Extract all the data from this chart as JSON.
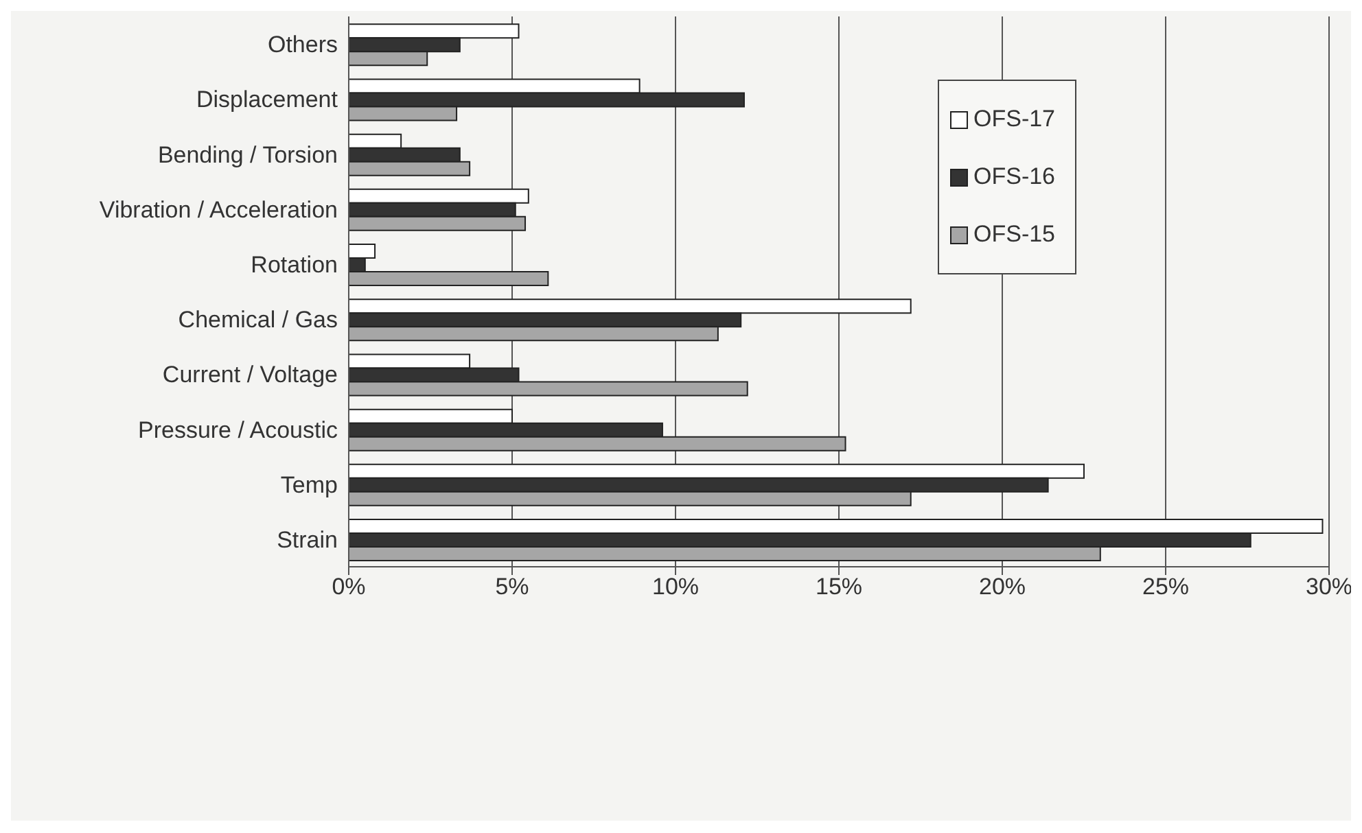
{
  "chart_data": {
    "type": "bar",
    "orientation": "horizontal",
    "categories": [
      "Others",
      "Displacement",
      "Bending / Torsion",
      "Vibration / Acceleration",
      "Rotation",
      "Chemical / Gas",
      "Current / Voltage",
      "Pressure / Acoustic",
      "Temp",
      "Strain"
    ],
    "series": [
      {
        "name": "OFS-17",
        "color": "#ffffff",
        "values": [
          5.2,
          8.9,
          1.6,
          5.5,
          0.8,
          17.2,
          3.7,
          5.0,
          22.5,
          29.8
        ]
      },
      {
        "name": "OFS-16",
        "color": "#333333",
        "values": [
          3.4,
          12.1,
          3.4,
          5.1,
          0.5,
          12.0,
          5.2,
          9.6,
          21.4,
          27.6
        ]
      },
      {
        "name": "OFS-15",
        "color": "#a6a6a6",
        "values": [
          2.4,
          3.3,
          3.7,
          5.4,
          6.1,
          11.3,
          12.2,
          15.2,
          17.2,
          23.0
        ]
      }
    ],
    "xlim": [
      0,
      30
    ],
    "xticks": [
      {
        "value": 0,
        "label": "0%"
      },
      {
        "value": 5,
        "label": "5%"
      },
      {
        "value": 10,
        "label": "10%"
      },
      {
        "value": 15,
        "label": "15%"
      },
      {
        "value": 20,
        "label": "20%"
      },
      {
        "value": 25,
        "label": "25%"
      },
      {
        "value": 30,
        "label": "30%"
      }
    ],
    "grid": "x",
    "legend": "top right"
  }
}
